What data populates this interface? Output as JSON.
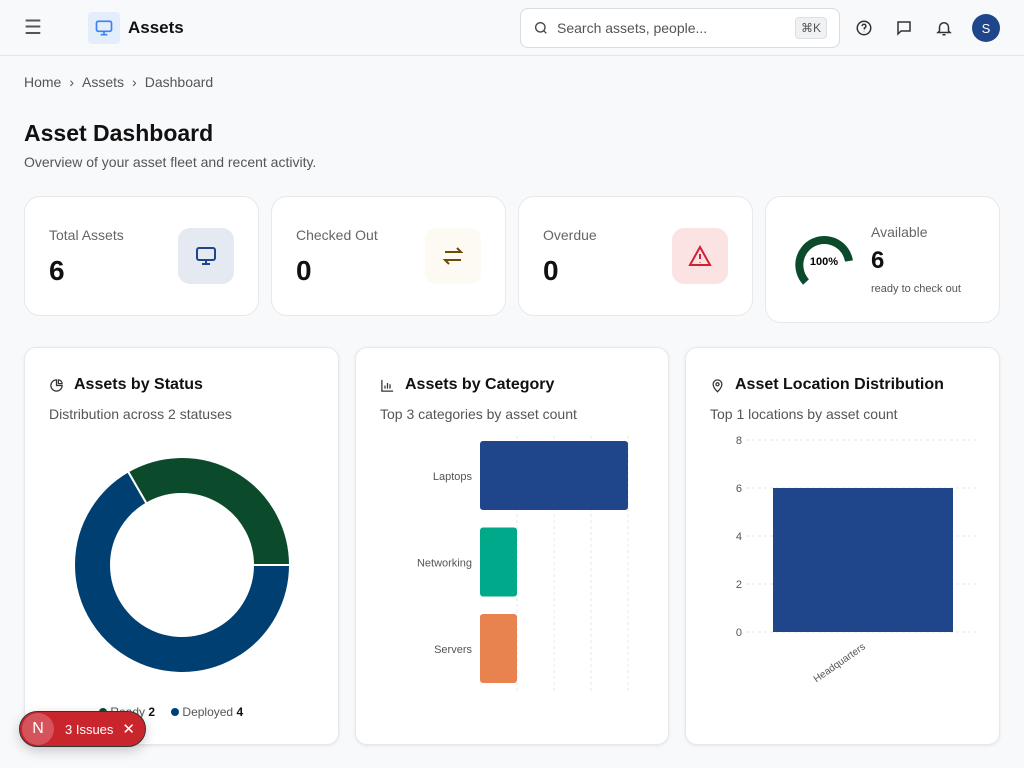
{
  "header": {
    "title": "Assets",
    "search_placeholder": "Search assets, people...",
    "shortcut": "⌘K",
    "avatar": "S"
  },
  "breadcrumb": [
    "Home",
    "Assets",
    "Dashboard"
  ],
  "page": {
    "title": "Asset Dashboard",
    "subtitle": "Overview of your asset fleet and recent activity."
  },
  "stats": [
    {
      "label": "Total Assets",
      "value": "6"
    },
    {
      "label": "Checked Out",
      "value": "0"
    },
    {
      "label": "Overdue",
      "value": "0"
    }
  ],
  "available": {
    "label": "Available",
    "value": "6",
    "sub": "ready to check out",
    "percent_label": "100%",
    "percent": 100
  },
  "status": {
    "title": "Assets by Status",
    "subtitle": "Distribution across 2 statuses"
  },
  "category": {
    "title": "Assets by Category",
    "subtitle": "Top 3 categories by asset count"
  },
  "location": {
    "title": "Asset Location Distribution",
    "subtitle": "Top 1 locations by asset count"
  },
  "chart_data": [
    {
      "type": "pie",
      "title": "Assets by Status",
      "series": [
        {
          "name": "Ready",
          "value": 2,
          "color": "#0b4a2a"
        },
        {
          "name": "Deployed",
          "value": 4,
          "color": "#003f72"
        }
      ]
    },
    {
      "type": "bar",
      "orientation": "horizontal",
      "title": "Assets by Category",
      "categories": [
        "Laptops",
        "Networking",
        "Servers"
      ],
      "values": [
        4,
        1,
        1
      ],
      "colors": [
        "#1f468b",
        "#00a98a",
        "#e8834f"
      ],
      "xlim": [
        0,
        4
      ]
    },
    {
      "type": "bar",
      "title": "Asset Location Distribution",
      "categories": [
        "Headquarters"
      ],
      "values": [
        6
      ],
      "ylim": [
        0,
        8
      ],
      "yticks": [
        "0",
        "2",
        "4",
        "6",
        "8"
      ],
      "color": "#1f468b"
    }
  ],
  "issues": {
    "logo": "N",
    "label": "3 Issues"
  }
}
